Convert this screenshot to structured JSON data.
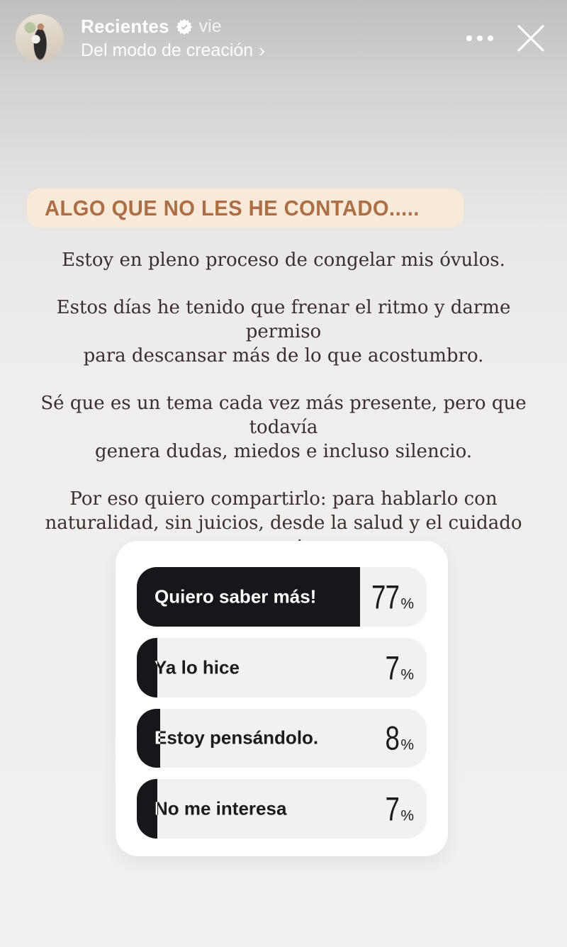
{
  "header": {
    "username": "Recientes",
    "timestamp": "vie",
    "subtitle": "Del modo de creación",
    "chevron": "›",
    "icons": {
      "verified": "verified-seal-check",
      "more_options": "ellipsis-horizontal",
      "close": "x-mark"
    }
  },
  "story": {
    "headline": "ALGO QUE NO LES HE CONTADO.....",
    "paragraphs": [
      "Estoy en pleno proceso de congelar mis óvulos.",
      "Estos días he tenido que frenar el ritmo y darme permiso\npara descansar más de lo que acostumbro.",
      "Sé que es un tema cada vez más presente, pero que todavía\ngenera dudas, miedos e incluso silencio.",
      "Por eso quiero compartirlo: para  hablarlo con\nnaturalidad, sin juicios, desde la salud y el cuidado propio"
    ]
  },
  "poll": {
    "options": [
      {
        "label": "Quiero saber más!",
        "value": 77,
        "unit": "%"
      },
      {
        "label": "Ya lo hice",
        "value": 7,
        "unit": "%"
      },
      {
        "label": "Estoy pensándolo.",
        "value": 8,
        "unit": "%"
      },
      {
        "label": "No me interesa",
        "value": 7,
        "unit": "%"
      }
    ]
  },
  "colors": {
    "headline_text": "#ac6f45",
    "headline_bg": "#f8e9d8",
    "poll_fill": "#17171b",
    "poll_track": "#f1f1f3",
    "poll_card_bg": "#ffffff",
    "body_text": "#3a2f2e"
  }
}
